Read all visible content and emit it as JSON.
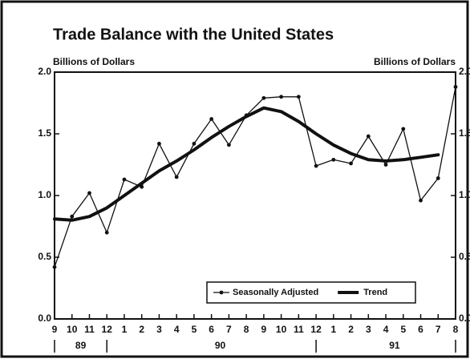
{
  "chart_data": {
    "type": "line",
    "title": "Trade Balance with the United States",
    "ylabel": "Billions of Dollars",
    "y2label": "Billions of Dollars",
    "categories": [
      "9",
      "10",
      "11",
      "12",
      "1",
      "2",
      "3",
      "4",
      "5",
      "6",
      "7",
      "8",
      "9",
      "10",
      "11",
      "12",
      "1",
      "2",
      "3",
      "4",
      "5",
      "6",
      "7",
      "8"
    ],
    "years": [
      "89",
      "90",
      "91"
    ],
    "series": [
      {
        "name": "Seasonally Adjusted",
        "color": "#111111",
        "marker": true,
        "values": [
          0.42,
          0.83,
          1.02,
          0.7,
          1.13,
          1.07,
          1.42,
          1.15,
          1.42,
          1.62,
          1.41,
          1.65,
          1.79,
          1.8,
          1.8,
          1.24,
          1.29,
          1.26,
          1.48,
          1.25,
          1.54,
          0.96,
          1.14,
          1.88
        ]
      },
      {
        "name": "Trend",
        "color": "#111111",
        "marker": false,
        "values": [
          0.81,
          0.8,
          0.83,
          0.9,
          1.0,
          1.1,
          1.2,
          1.28,
          1.37,
          1.47,
          1.56,
          1.64,
          1.71,
          1.68,
          1.6,
          1.5,
          1.41,
          1.34,
          1.29,
          1.28,
          1.29,
          1.31,
          1.33,
          null
        ]
      }
    ],
    "ylim": [
      0,
      2
    ],
    "yticks": [
      {
        "value": 0,
        "label": "0.0"
      },
      {
        "value": 0.5,
        "label": "0.5"
      },
      {
        "value": 1,
        "label": "1.0"
      },
      {
        "value": 1.5,
        "label": "1.5"
      },
      {
        "value": 2,
        "label": "2.0"
      }
    ],
    "legend": "lower right"
  }
}
